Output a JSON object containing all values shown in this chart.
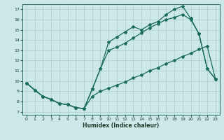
{
  "xlabel": "Humidex (Indice chaleur)",
  "bg_color": "#cce8e8",
  "grid_color": "#aacccc",
  "line_color": "#1a6b5a",
  "xlim_min": -0.5,
  "xlim_max": 23.5,
  "ylim_min": 6.7,
  "ylim_max": 17.5,
  "xticks": [
    0,
    1,
    2,
    3,
    4,
    5,
    6,
    7,
    8,
    9,
    10,
    11,
    12,
    13,
    14,
    15,
    16,
    17,
    18,
    19,
    20,
    21,
    22,
    23
  ],
  "yticks": [
    7,
    8,
    9,
    10,
    11,
    12,
    13,
    14,
    15,
    16,
    17
  ],
  "line1_x": [
    0,
    1,
    2,
    3,
    4,
    5,
    6,
    7,
    8,
    9,
    10,
    11,
    12,
    13,
    14,
    15,
    16,
    17,
    18,
    19,
    20,
    21,
    22,
    23
  ],
  "line1_y": [
    9.8,
    9.1,
    8.5,
    8.2,
    7.8,
    7.7,
    7.4,
    7.3,
    8.5,
    9.0,
    9.3,
    9.6,
    9.9,
    10.3,
    10.6,
    11.0,
    11.3,
    11.7,
    12.0,
    12.4,
    12.7,
    13.1,
    13.4,
    10.2
  ],
  "line2_x": [
    0,
    1,
    2,
    3,
    4,
    5,
    6,
    7,
    8,
    9,
    10,
    11,
    12,
    13,
    14,
    15,
    16,
    17,
    18,
    19,
    20,
    21,
    22,
    23
  ],
  "line2_y": [
    9.8,
    9.1,
    8.5,
    8.2,
    7.8,
    7.7,
    7.4,
    7.3,
    9.2,
    11.2,
    13.0,
    13.3,
    13.7,
    14.2,
    14.7,
    15.2,
    15.6,
    16.0,
    16.2,
    16.5,
    16.0,
    14.6,
    11.2,
    10.2
  ],
  "line3_x": [
    0,
    2,
    3,
    4,
    5,
    6,
    7,
    8,
    9,
    10,
    11,
    12,
    13,
    14,
    15,
    16,
    17,
    18,
    19,
    20,
    21,
    22,
    23
  ],
  "line3_y": [
    9.8,
    8.5,
    8.2,
    7.8,
    7.7,
    7.4,
    7.3,
    9.2,
    11.2,
    13.8,
    14.3,
    14.8,
    15.3,
    15.0,
    15.5,
    15.8,
    16.5,
    17.0,
    17.3,
    16.1,
    14.6,
    11.2,
    10.2
  ]
}
